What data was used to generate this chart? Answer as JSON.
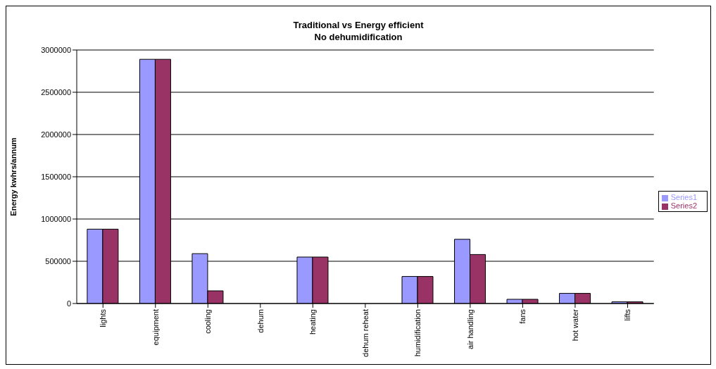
{
  "chart_data": {
    "type": "bar",
    "title": "Traditional vs Energy efficient\nNo dehumidification",
    "ylabel": "Energy kwhrs/annum",
    "categories": [
      "lights",
      "equipment",
      "cooling",
      "dehum",
      "heating",
      "dehum reheat",
      "humidification",
      "air handling",
      "fans",
      "hot water",
      "lifts"
    ],
    "series": [
      {
        "name": "Series1",
        "color": "#9999ff",
        "values": [
          880000,
          2890000,
          590000,
          0,
          550000,
          0,
          320000,
          760000,
          50000,
          120000,
          20000
        ]
      },
      {
        "name": "Series2",
        "color": "#993366",
        "values": [
          880000,
          2890000,
          150000,
          0,
          550000,
          0,
          320000,
          580000,
          50000,
          120000,
          20000
        ]
      }
    ],
    "ylim": [
      0,
      3000000
    ],
    "yticks": [
      0,
      500000,
      1000000,
      1500000,
      2000000,
      2500000,
      3000000
    ],
    "grid": "y",
    "legend": "right"
  }
}
